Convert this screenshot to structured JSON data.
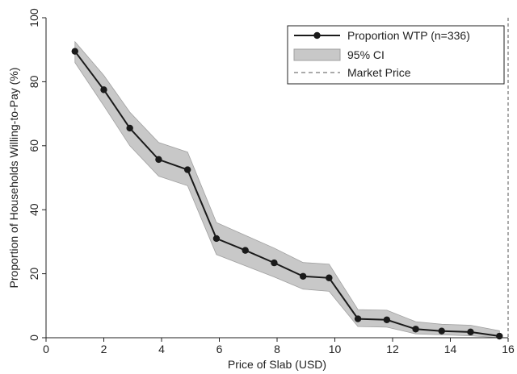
{
  "chart_data": {
    "type": "line",
    "xlabel": "Price of Slab (USD)",
    "ylabel": "Proportion of Households Willing-to-Pay (%)",
    "xlim": [
      0,
      16
    ],
    "ylim": [
      0,
      100
    ],
    "xticks": [
      0,
      2,
      4,
      6,
      8,
      10,
      12,
      14,
      16
    ],
    "yticks": [
      0,
      20,
      40,
      60,
      80,
      100
    ],
    "grid": false,
    "legend_position": "top-right",
    "market_price": 16,
    "series": [
      {
        "name": "Proportion WTP (n=336)",
        "color": "#1a1a1a",
        "x": [
          1,
          2,
          2.9,
          3.9,
          4.9,
          5.9,
          6.9,
          7.9,
          8.9,
          9.8,
          10.8,
          11.8,
          12.8,
          13.7,
          14.7,
          15.7
        ],
        "y": [
          89.5,
          77.5,
          65.5,
          55.7,
          52.5,
          31,
          27.3,
          23.4,
          19.2,
          18.7,
          5.9,
          5.6,
          2.7,
          2.1,
          1.8,
          0.5
        ]
      }
    ],
    "ci": {
      "name": "95% CI",
      "color": "#c8c8c8",
      "x": [
        1,
        2,
        2.9,
        3.9,
        4.9,
        5.9,
        6.9,
        7.9,
        8.9,
        9.8,
        10.8,
        11.8,
        12.8,
        13.7,
        14.7,
        15.7
      ],
      "lower": [
        86,
        72.5,
        60,
        50.5,
        47.5,
        26,
        22.5,
        19,
        15.2,
        14.5,
        3.5,
        3.3,
        1.2,
        0.9,
        0.6,
        0
      ],
      "upper": [
        92.5,
        82,
        70.5,
        61,
        58,
        36,
        32,
        28,
        23.5,
        23,
        8.8,
        8.6,
        5,
        4.2,
        3.9,
        2.2
      ]
    },
    "legend": {
      "entries": [
        "Proportion WTP (n=336)",
        "95% CI",
        "Market Price"
      ]
    }
  }
}
